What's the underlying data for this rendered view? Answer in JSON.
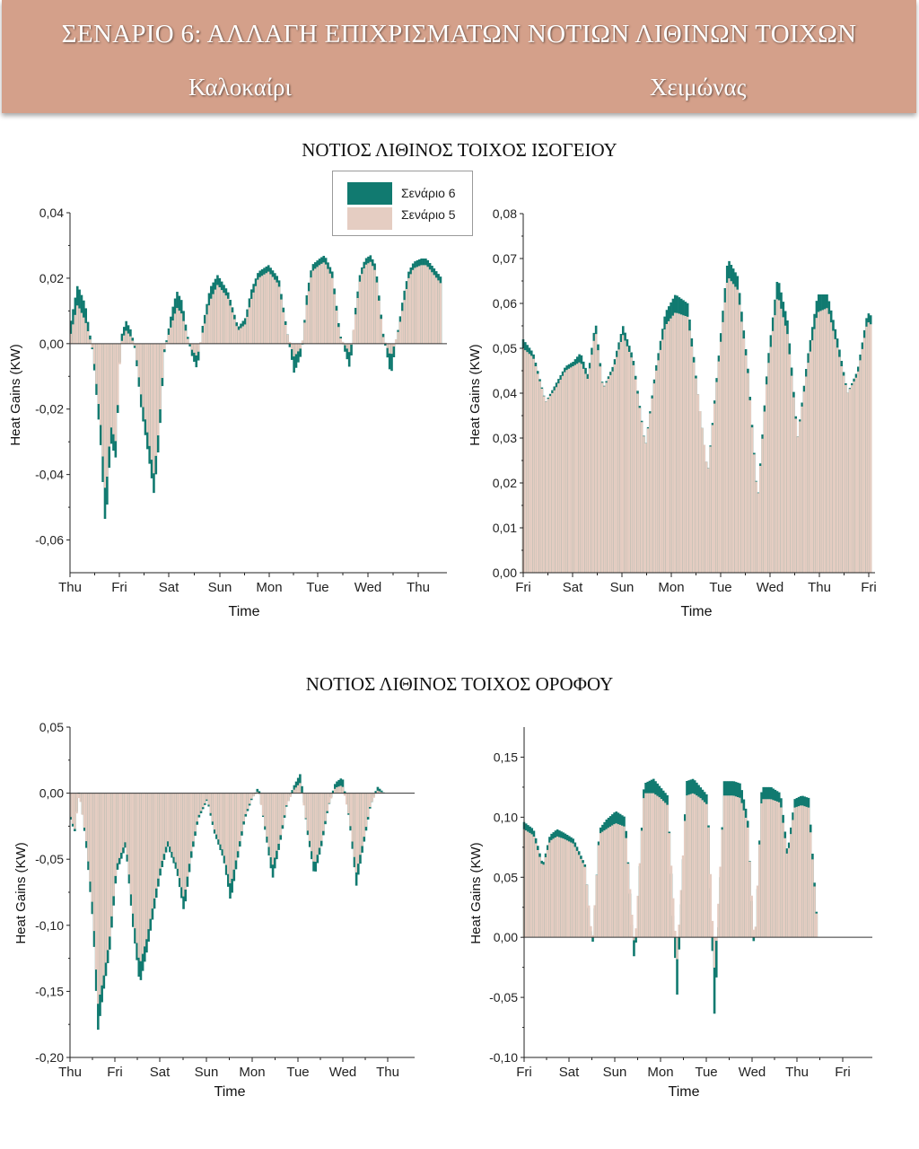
{
  "header": {
    "title": "ΣΕΝΑΡΙΟ 6: ΑΛΛΑΓΗ ΕΠΙΧΡΙΣΜΑΤΩΝ ΝΟΤΙΩΝ ΛΙΘΙΝΩΝ ΤΟΙΧΩΝ",
    "summer": "Καλοκαίρι",
    "winter": "Χειμώνας"
  },
  "sections": {
    "ground": "ΝΟΤΙΟΣ ΛΙΘΙΝΟΣ ΤΟΙΧΟΣ ΙΣΟΓΕΙΟΥ",
    "roof": "ΝΟΤΙΟΣ ΛΙΘΙΝΟΣ ΤΟΙΧΟΣ ΟΡΟΦΟΥ"
  },
  "legend": [
    {
      "name": "Σενάριο 6",
      "color": "#117a70"
    },
    {
      "name": "Σενάριο 5",
      "color": "#e5cdc2"
    }
  ],
  "colors": {
    "scenario6": "#117a70",
    "scenario5": "#e5cdc2",
    "banner": "#d4a08a"
  },
  "chart_data": [
    {
      "id": "ground-summer",
      "type": "area",
      "xlabel": "Time",
      "ylabel": "Heat Gains (KW)",
      "ylim": [
        -0.07,
        0.04
      ],
      "yticks": [
        -0.06,
        -0.04,
        -0.02,
        0.0,
        0.02,
        0.04
      ],
      "ytick_labels": [
        "-0,06",
        "-0,04",
        "-0,02",
        "0,00",
        "0,02",
        "0,04"
      ],
      "xtick_labels": [
        "Thu",
        "Fri",
        "Sat",
        "Sun",
        "Mon",
        "Tue",
        "Wed",
        "Thu"
      ],
      "xrange": [
        0,
        7.4
      ],
      "series": [
        {
          "name": "Σενάριο 6",
          "x": [
            0.02,
            0.15,
            0.3,
            0.45,
            0.6,
            0.7,
            0.8,
            0.9,
            1.0,
            1.1,
            1.2,
            1.28,
            1.4,
            1.5,
            1.65,
            1.75,
            1.85,
            2.0,
            2.1,
            2.2,
            2.3,
            2.4,
            2.5,
            2.6,
            2.75,
            2.9,
            3.1,
            3.3,
            3.45,
            3.55,
            3.7,
            3.9,
            4.1,
            4.25,
            4.4,
            4.55,
            4.65,
            4.75,
            4.9,
            5.0,
            5.15,
            5.3,
            5.5,
            5.6,
            5.7,
            5.8,
            5.9,
            6.0,
            6.15,
            6.3,
            6.45,
            6.55,
            6.65,
            6.75,
            6.9,
            7.0,
            7.1,
            7.2,
            7.3
          ],
          "y": [
            0.007,
            0.018,
            0.012,
            -0.003,
            -0.03,
            -0.057,
            -0.03,
            -0.035,
            0.002,
            0.007,
            0.004,
            -0.002,
            -0.02,
            -0.03,
            -0.046,
            -0.03,
            -0.003,
            0.01,
            0.016,
            0.013,
            0.003,
            -0.004,
            -0.008,
            0.005,
            0.017,
            0.021,
            0.016,
            0.005,
            0.008,
            0.016,
            0.022,
            0.024,
            0.02,
            0.005,
            -0.009,
            -0.003,
            0.015,
            0.024,
            0.026,
            0.027,
            0.022,
            0.003,
            -0.008,
            0.01,
            0.022,
            0.026,
            0.027,
            0.024,
            0.003,
            -0.01,
            0.005,
            0.015,
            0.022,
            0.025,
            0.026,
            0.026,
            0.024,
            0.022,
            0.02
          ]
        },
        {
          "name": "Σενάριο 5",
          "x": [
            0.02,
            0.15,
            0.3,
            0.45,
            0.6,
            0.7,
            0.8,
            0.9,
            1.0,
            1.1,
            1.2,
            1.28,
            1.4,
            1.5,
            1.65,
            1.75,
            1.85,
            2.0,
            2.1,
            2.2,
            2.3,
            2.4,
            2.5,
            2.6,
            2.75,
            2.9,
            3.1,
            3.3,
            3.45,
            3.55,
            3.7,
            3.9,
            4.1,
            4.25,
            4.4,
            4.55,
            4.65,
            4.75,
            4.9,
            5.0,
            5.15,
            5.3,
            5.5,
            5.6,
            5.7,
            5.8,
            5.9,
            6.0,
            6.15,
            6.3,
            6.45,
            6.55,
            6.65,
            6.75,
            6.9,
            7.0,
            7.1,
            7.2,
            7.3
          ],
          "y": [
            0.003,
            0.012,
            0.007,
            -0.002,
            -0.024,
            -0.047,
            -0.025,
            -0.03,
            0.0,
            0.004,
            0.002,
            -0.001,
            -0.016,
            -0.025,
            -0.04,
            -0.025,
            -0.002,
            0.006,
            0.011,
            0.009,
            0.002,
            -0.002,
            -0.004,
            0.003,
            0.013,
            0.018,
            0.014,
            0.004,
            0.006,
            0.013,
            0.02,
            0.022,
            0.018,
            0.004,
            -0.004,
            -0.001,
            0.012,
            0.022,
            0.024,
            0.025,
            0.02,
            0.002,
            -0.003,
            0.008,
            0.02,
            0.024,
            0.025,
            0.022,
            0.002,
            -0.004,
            0.004,
            0.012,
            0.02,
            0.023,
            0.024,
            0.024,
            0.022,
            0.02,
            0.018
          ]
        }
      ]
    },
    {
      "id": "ground-winter",
      "type": "area",
      "xlabel": "Time",
      "ylabel": "Heat Gains (KW)",
      "ylim": [
        0.0,
        0.08
      ],
      "yticks": [
        0.0,
        0.01,
        0.02,
        0.03,
        0.04,
        0.05,
        0.06,
        0.07,
        0.08
      ],
      "ytick_labels": [
        "0,00",
        "0,01",
        "0,02",
        "0,03",
        "0,04",
        "0,05",
        "0,06",
        "0,07",
        "0,08"
      ],
      "xtick_labels": [
        "Fri",
        "Sat",
        "Sun",
        "Mon",
        "Tue",
        "Wed",
        "Thu",
        "Fri"
      ],
      "xrange": [
        0,
        7.05
      ],
      "series": [
        {
          "name": "Σενάριο 6",
          "x": [
            0.0,
            0.2,
            0.45,
            0.65,
            0.85,
            1.0,
            1.15,
            1.3,
            1.45,
            1.6,
            1.8,
            2.0,
            2.2,
            2.45,
            2.65,
            2.85,
            3.05,
            3.3,
            3.5,
            3.7,
            3.9,
            4.1,
            4.3,
            4.5,
            4.7,
            4.9,
            5.1,
            5.3,
            5.5,
            5.7,
            5.9,
            6.1,
            6.3,
            6.5,
            6.7,
            6.9,
            7.0
          ],
          "y": [
            0.052,
            0.049,
            0.038,
            0.042,
            0.046,
            0.047,
            0.049,
            0.044,
            0.056,
            0.041,
            0.046,
            0.055,
            0.048,
            0.028,
            0.045,
            0.058,
            0.062,
            0.06,
            0.04,
            0.022,
            0.046,
            0.07,
            0.066,
            0.046,
            0.016,
            0.047,
            0.066,
            0.056,
            0.03,
            0.048,
            0.062,
            0.062,
            0.052,
            0.04,
            0.045,
            0.058,
            0.057
          ]
        },
        {
          "name": "Σενάριο 5",
          "x": [
            0.0,
            0.2,
            0.45,
            0.65,
            0.85,
            1.0,
            1.15,
            1.3,
            1.45,
            1.6,
            1.8,
            2.0,
            2.2,
            2.45,
            2.65,
            2.85,
            3.05,
            3.3,
            3.5,
            3.7,
            3.9,
            4.1,
            4.3,
            4.5,
            4.7,
            4.9,
            5.1,
            5.3,
            5.5,
            5.7,
            5.9,
            6.1,
            6.3,
            6.5,
            6.7,
            6.9,
            7.0
          ],
          "y": [
            0.05,
            0.048,
            0.038,
            0.041,
            0.045,
            0.046,
            0.047,
            0.043,
            0.054,
            0.041,
            0.045,
            0.053,
            0.047,
            0.028,
            0.044,
            0.055,
            0.058,
            0.057,
            0.04,
            0.022,
            0.045,
            0.066,
            0.063,
            0.045,
            0.016,
            0.045,
            0.062,
            0.053,
            0.03,
            0.046,
            0.058,
            0.059,
            0.05,
            0.04,
            0.044,
            0.056,
            0.055
          ]
        }
      ]
    },
    {
      "id": "roof-summer",
      "type": "area",
      "xlabel": "Time",
      "ylabel": "Heat Gains (KW)",
      "ylim": [
        -0.2,
        0.05
      ],
      "yticks": [
        -0.2,
        -0.15,
        -0.1,
        -0.05,
        0.0,
        0.05
      ],
      "ytick_labels": [
        "-0,20",
        "-0,15",
        "-0,10",
        "-0,05",
        "0,00",
        "0,05"
      ],
      "xtick_labels": [
        "Thu",
        "Fri",
        "Sat",
        "Sun",
        "Mon",
        "Tue",
        "Wed",
        "Thu"
      ],
      "xrange": [
        0,
        7.4
      ],
      "series": [
        {
          "name": "Σενάριο 6",
          "x": [
            0.02,
            0.1,
            0.2,
            0.35,
            0.5,
            0.6,
            0.72,
            0.85,
            1.0,
            1.2,
            1.35,
            1.5,
            1.65,
            1.8,
            1.95,
            2.1,
            2.3,
            2.45,
            2.6,
            2.75,
            2.95,
            3.1,
            3.3,
            3.45,
            3.6,
            3.75,
            3.9,
            4.05,
            4.2,
            4.35,
            4.5,
            4.65,
            4.8,
            4.95,
            5.1,
            5.25,
            5.4,
            5.55,
            5.7,
            5.85,
            6.0,
            6.15,
            6.3,
            6.45,
            6.6,
            6.75,
            6.9,
            7.05
          ],
          "y": [
            -0.02,
            -0.03,
            0.005,
            -0.04,
            -0.1,
            -0.18,
            -0.15,
            -0.12,
            -0.06,
            -0.04,
            -0.1,
            -0.145,
            -0.12,
            -0.09,
            -0.06,
            -0.04,
            -0.06,
            -0.09,
            -0.05,
            -0.02,
            -0.005,
            -0.03,
            -0.05,
            -0.082,
            -0.05,
            -0.02,
            -0.005,
            0.005,
            -0.03,
            -0.065,
            -0.04,
            -0.01,
            0.005,
            0.015,
            -0.03,
            -0.063,
            -0.04,
            -0.01,
            0.008,
            0.012,
            -0.02,
            -0.07,
            -0.04,
            -0.01,
            0.005,
            0.0,
            0.0,
            0.0
          ]
        },
        {
          "name": "Σενάριο 5",
          "x": [
            0.02,
            0.1,
            0.2,
            0.35,
            0.5,
            0.6,
            0.72,
            0.85,
            1.0,
            1.2,
            1.35,
            1.5,
            1.65,
            1.8,
            1.95,
            2.1,
            2.3,
            2.45,
            2.6,
            2.75,
            2.95,
            3.1,
            3.3,
            3.45,
            3.6,
            3.75,
            3.9,
            4.05,
            4.2,
            4.35,
            4.5,
            4.65,
            4.8,
            4.95,
            5.1,
            5.25,
            5.4,
            5.55,
            5.7,
            5.85,
            6.0,
            6.15,
            6.3,
            6.45,
            6.6,
            6.75,
            6.9,
            7.05
          ],
          "y": [
            -0.018,
            -0.028,
            0.0,
            -0.035,
            -0.09,
            -0.16,
            -0.14,
            -0.11,
            -0.055,
            -0.036,
            -0.09,
            -0.13,
            -0.11,
            -0.082,
            -0.055,
            -0.036,
            -0.055,
            -0.08,
            -0.045,
            -0.018,
            -0.004,
            -0.027,
            -0.045,
            -0.07,
            -0.045,
            -0.018,
            -0.004,
            0.002,
            -0.027,
            -0.055,
            -0.036,
            -0.009,
            0.002,
            0.008,
            -0.027,
            -0.055,
            -0.036,
            -0.009,
            0.004,
            0.006,
            -0.018,
            -0.06,
            -0.036,
            -0.009,
            0.002,
            0.0,
            0.0,
            0.0
          ]
        }
      ]
    },
    {
      "id": "roof-winter",
      "type": "area",
      "xlabel": "Time",
      "ylabel": "Heat Gains (KW)",
      "ylim": [
        -0.1,
        0.175
      ],
      "yticks": [
        -0.1,
        -0.05,
        0.0,
        0.05,
        0.1,
        0.15
      ],
      "ytick_labels": [
        "-0,10",
        "-0,05",
        "0,00",
        "0,05",
        "0,10",
        "0,15"
      ],
      "xtick_labels": [
        "Fri",
        "Sat",
        "Sun",
        "Mon",
        "Tue",
        "Wed",
        "Thu",
        "Fri"
      ],
      "xrange": [
        0,
        7.4
      ],
      "series": [
        {
          "name": "Σενάριο 6",
          "x": [
            0.0,
            0.2,
            0.4,
            0.55,
            0.7,
            0.85,
            1.05,
            1.3,
            1.45,
            1.6,
            1.75,
            1.95,
            2.15,
            2.35,
            2.55,
            2.75,
            2.9,
            3.05,
            3.25,
            3.45,
            3.6,
            3.75,
            3.9,
            4.05,
            4.25,
            4.45,
            4.6,
            4.75,
            4.9,
            5.05,
            5.25,
            5.45,
            5.6,
            5.75,
            5.9,
            6.05,
            6.25,
            6.45,
            6.6,
            6.8,
            6.95
          ],
          "y": [
            0.096,
            0.09,
            0.06,
            0.085,
            0.09,
            0.087,
            0.082,
            0.06,
            -0.01,
            0.09,
            0.098,
            0.105,
            0.1,
            -0.025,
            0.128,
            0.132,
            0.125,
            0.118,
            -0.05,
            0.13,
            0.132,
            0.125,
            0.118,
            -0.07,
            0.13,
            0.13,
            0.128,
            0.1,
            -0.02,
            0.125,
            0.125,
            0.12,
            0.07,
            0.115,
            0.118,
            0.116,
            0.0,
            0.0,
            0.0,
            0.0,
            0.0
          ]
        },
        {
          "name": "Σενάριο 5",
          "x": [
            0.0,
            0.2,
            0.4,
            0.55,
            0.7,
            0.85,
            1.05,
            1.3,
            1.45,
            1.6,
            1.75,
            1.95,
            2.15,
            2.35,
            2.55,
            2.75,
            2.9,
            3.05,
            3.25,
            3.45,
            3.6,
            3.75,
            3.9,
            4.05,
            4.25,
            4.45,
            4.6,
            4.75,
            4.9,
            5.05,
            5.25,
            5.45,
            5.6,
            5.75,
            5.9,
            6.05,
            6.25,
            6.45,
            6.6,
            6.8,
            6.95
          ],
          "y": [
            0.09,
            0.085,
            0.058,
            0.08,
            0.084,
            0.082,
            0.078,
            0.058,
            -0.004,
            0.086,
            0.09,
            0.095,
            0.092,
            -0.01,
            0.12,
            0.12,
            0.116,
            0.11,
            -0.02,
            0.118,
            0.12,
            0.116,
            0.11,
            -0.03,
            0.118,
            0.118,
            0.116,
            0.094,
            -0.008,
            0.115,
            0.115,
            0.112,
            0.066,
            0.108,
            0.11,
            0.108,
            0.0,
            0.0,
            0.0,
            0.0,
            0.0
          ]
        }
      ]
    }
  ]
}
